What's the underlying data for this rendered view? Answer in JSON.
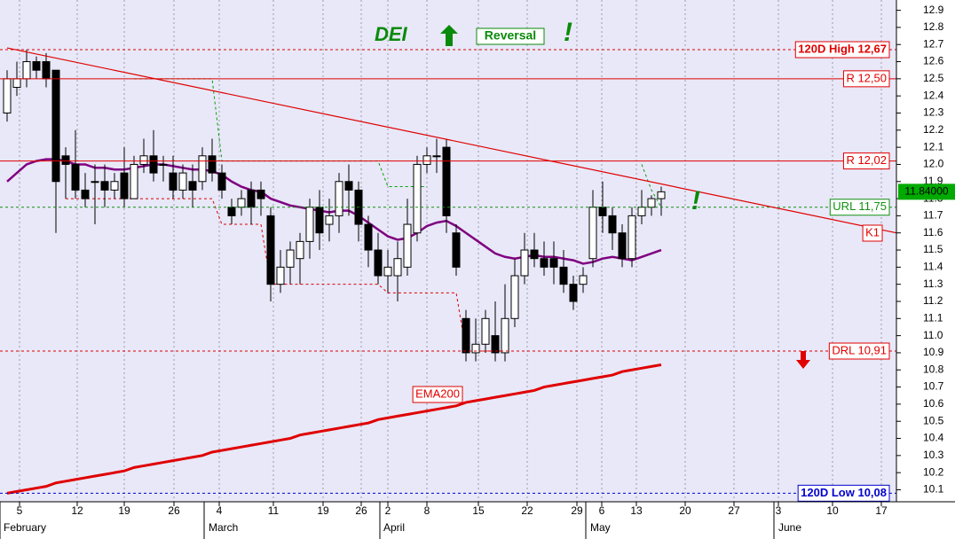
{
  "chart_data": {
    "type": "candlestick",
    "ylim": [
      10.03,
      12.96
    ],
    "yticks": [
      10.1,
      10.2,
      10.3,
      10.4,
      10.5,
      10.6,
      10.7,
      10.8,
      10.9,
      {
        "value": 11,
        "label": "11.0"
      },
      11.1,
      11.2,
      11.3,
      11.4,
      11.5,
      11.6,
      11.7,
      11.8,
      11.9,
      {
        "value": 12,
        "label": "12.0"
      },
      12.1,
      12.2,
      12.3,
      12.4,
      12.5,
      12.6,
      12.7,
      12.8,
      12.9
    ],
    "date_ticks": [
      "5",
      "12",
      "19",
      "26",
      "4",
      "11",
      "19",
      "26",
      "2",
      "8",
      "15",
      "22",
      "29",
      "6",
      "13",
      "20",
      "27",
      "3",
      "10",
      "17"
    ],
    "months": [
      "February",
      "March",
      "April",
      "May",
      "June"
    ],
    "grid": true,
    "annotations": {
      "ticker": "DEI",
      "signal": "Reversal",
      "alert": "!"
    },
    "last_price": {
      "value": 11.84,
      "label": "11.84000",
      "color": "#00aa00"
    },
    "candles": {
      "open": [
        12.3,
        12.45,
        12.5,
        12.6,
        12.6,
        12.55,
        12.05,
        12.0,
        11.85,
        11.9,
        11.9,
        11.85,
        11.95,
        11.8,
        12.0,
        12.05,
        12.0,
        11.95,
        11.85,
        11.9,
        11.9,
        12.05,
        11.95,
        11.75,
        11.75,
        11.85,
        11.85,
        11.7,
        11.3,
        11.4,
        11.45,
        11.55,
        11.75,
        11.65,
        11.7,
        11.9,
        11.85,
        11.65,
        11.5,
        11.35,
        11.35,
        11.4,
        11.6,
        12.0,
        12.05,
        12.1,
        11.6,
        11.1,
        10.9,
        10.95,
        11.0,
        10.9,
        11.1,
        11.35,
        11.5,
        11.45,
        11.45,
        11.4,
        11.3,
        11.3,
        11.45,
        11.75,
        11.7,
        11.6,
        11.45,
        11.7,
        11.75,
        11.8
      ],
      "high": [
        12.55,
        12.6,
        12.67,
        12.63,
        12.65,
        12.55,
        12.1,
        12.2,
        11.95,
        12.0,
        12.0,
        11.95,
        12.1,
        12.05,
        12.15,
        12.2,
        12.05,
        12.05,
        12.0,
        12.0,
        12.1,
        12.15,
        12.0,
        11.8,
        11.85,
        11.9,
        11.9,
        11.75,
        11.5,
        11.55,
        11.6,
        11.8,
        11.85,
        11.8,
        11.95,
        12.0,
        11.9,
        11.7,
        11.6,
        11.5,
        11.55,
        11.8,
        12.05,
        12.1,
        12.15,
        12.15,
        11.65,
        11.15,
        11.1,
        11.15,
        11.2,
        11.3,
        11.45,
        11.6,
        11.6,
        11.55,
        11.55,
        11.5,
        11.35,
        11.4,
        11.85,
        11.9,
        11.75,
        11.65,
        11.75,
        11.85,
        11.82,
        11.87
      ],
      "low": [
        12.25,
        12.4,
        12.45,
        12.5,
        12.45,
        11.6,
        11.8,
        11.8,
        11.75,
        11.65,
        11.75,
        11.8,
        11.75,
        11.8,
        11.95,
        11.9,
        11.9,
        11.8,
        11.8,
        11.75,
        11.85,
        11.9,
        11.8,
        11.65,
        11.7,
        11.65,
        11.7,
        11.2,
        11.25,
        11.3,
        11.3,
        11.45,
        11.5,
        11.55,
        11.6,
        11.7,
        11.55,
        11.4,
        11.3,
        11.25,
        11.2,
        11.35,
        11.55,
        11.95,
        11.95,
        11.6,
        11.35,
        10.85,
        10.85,
        10.9,
        10.85,
        10.85,
        11.05,
        11.3,
        11.4,
        11.35,
        11.3,
        11.25,
        11.15,
        11.25,
        11.4,
        11.6,
        11.5,
        11.4,
        11.4,
        11.65,
        11.7,
        11.7
      ],
      "close": [
        12.5,
        12.5,
        12.6,
        12.55,
        12.5,
        11.9,
        12.0,
        11.85,
        11.8,
        11.9,
        11.85,
        11.9,
        11.8,
        12.0,
        12.05,
        11.95,
        12.0,
        11.85,
        11.95,
        11.85,
        12.05,
        11.95,
        11.85,
        11.7,
        11.8,
        11.75,
        11.8,
        11.3,
        11.4,
        11.5,
        11.55,
        11.75,
        11.6,
        11.7,
        11.9,
        11.85,
        11.65,
        11.5,
        11.35,
        11.4,
        11.45,
        11.65,
        12.0,
        12.05,
        12.05,
        11.7,
        11.4,
        10.9,
        10.95,
        11.1,
        10.9,
        11.1,
        11.35,
        11.5,
        11.45,
        11.4,
        11.4,
        11.3,
        11.2,
        11.35,
        11.75,
        11.7,
        11.6,
        11.45,
        11.7,
        11.75,
        11.8,
        11.84
      ]
    },
    "lines": [
      {
        "name": "EMA200",
        "color": "#e00000",
        "style": "solid",
        "width": 3,
        "values": [
          10.08,
          10.09,
          10.1,
          10.11,
          10.12,
          10.14,
          10.15,
          10.16,
          10.17,
          10.18,
          10.19,
          10.2,
          10.21,
          10.23,
          10.24,
          10.25,
          10.26,
          10.27,
          10.28,
          10.29,
          10.3,
          10.32,
          10.33,
          10.34,
          10.35,
          10.36,
          10.37,
          10.38,
          10.39,
          10.4,
          10.42,
          10.43,
          10.44,
          10.45,
          10.46,
          10.47,
          10.48,
          10.49,
          10.51,
          10.52,
          10.53,
          10.54,
          10.55,
          10.56,
          10.57,
          10.58,
          10.59,
          10.61,
          10.62,
          10.63,
          10.64,
          10.65,
          10.66,
          10.67,
          10.68,
          10.7,
          10.71,
          10.72,
          10.73,
          10.74,
          10.75,
          10.76,
          10.77,
          10.79,
          10.8,
          10.81,
          10.82,
          10.83
        ]
      },
      {
        "color": "#800080",
        "style": "solid",
        "width": 2.5,
        "values": [
          11.9,
          11.95,
          12.0,
          12.02,
          12.03,
          12.03,
          12.02,
          12.0,
          12.0,
          11.98,
          11.98,
          11.97,
          11.97,
          11.98,
          11.99,
          12.0,
          12.0,
          11.99,
          11.98,
          11.97,
          11.97,
          11.96,
          11.94,
          11.9,
          11.87,
          11.85,
          11.84,
          11.8,
          11.78,
          11.76,
          11.75,
          11.74,
          11.73,
          11.72,
          11.73,
          11.73,
          11.7,
          11.66,
          11.62,
          11.58,
          11.56,
          11.57,
          11.6,
          11.64,
          11.66,
          11.67,
          11.64,
          11.6,
          11.56,
          11.52,
          11.48,
          11.46,
          11.45,
          11.46,
          11.47,
          11.46,
          11.46,
          11.45,
          11.44,
          11.42,
          11.43,
          11.45,
          11.46,
          11.45,
          11.44,
          11.46,
          11.48,
          11.5
        ]
      },
      {
        "color": "#00a000",
        "style": "dashed",
        "width": 1,
        "values": [
          null,
          null,
          null,
          null,
          null,
          null,
          null,
          null,
          null,
          null,
          null,
          null,
          null,
          12.5,
          12.5,
          12.5,
          12.5,
          12.5,
          12.5,
          12.5,
          12.5,
          12.5,
          12.02,
          12.02,
          12.02,
          12.02,
          12.02,
          12.02,
          12.02,
          12.02,
          12.02,
          12.02,
          12.02,
          12.02,
          12.02,
          12.02,
          12.02,
          12.02,
          12.02,
          11.87,
          11.87,
          11.87,
          11.87,
          11.87,
          null,
          null,
          null,
          null,
          null,
          null,
          null,
          null,
          null,
          null,
          null,
          null,
          null,
          null,
          null,
          null,
          null,
          null,
          null,
          null,
          null,
          12.0,
          11.85,
          11.75
        ]
      },
      {
        "color": "#e00000",
        "style": "dashed",
        "width": 1,
        "values": [
          null,
          null,
          null,
          null,
          null,
          null,
          11.8,
          11.8,
          11.8,
          11.8,
          11.8,
          11.8,
          11.8,
          11.8,
          11.8,
          11.8,
          11.8,
          11.8,
          11.8,
          11.8,
          11.8,
          11.8,
          11.65,
          11.65,
          11.65,
          11.65,
          11.65,
          11.3,
          11.3,
          11.3,
          11.3,
          11.3,
          11.3,
          11.3,
          11.3,
          11.3,
          11.3,
          11.3,
          11.3,
          11.25,
          11.25,
          11.25,
          11.25,
          11.25,
          11.25,
          11.25,
          11.25,
          10.91,
          10.91,
          10.91,
          10.91,
          10.91,
          null,
          null,
          null,
          null,
          null,
          null,
          null,
          null,
          null,
          null,
          null,
          null,
          null,
          null,
          null,
          null
        ]
      }
    ],
    "levels": [
      {
        "name": "120D High 12,67",
        "value": 12.67,
        "color": "#e00000",
        "style": "dashed"
      },
      {
        "name": "R 12,50",
        "value": 12.5,
        "color": "#e00000",
        "style": "solid"
      },
      {
        "name": "R 12,02",
        "value": 12.02,
        "color": "#e00000",
        "style": "solid"
      },
      {
        "name": "URL 11,75",
        "value": 11.75,
        "color": "#109010",
        "style": "dashed"
      },
      {
        "name": "DRL 10,91",
        "value": 10.91,
        "color": "#e00000",
        "style": "dashed"
      },
      {
        "name": "120D Low 10,08",
        "value": 10.08,
        "color": "#0000cc",
        "style": "dashed"
      }
    ],
    "trendline": {
      "name": "K1",
      "start": 12.68,
      "end": 11.6,
      "color": "#e00000"
    }
  }
}
